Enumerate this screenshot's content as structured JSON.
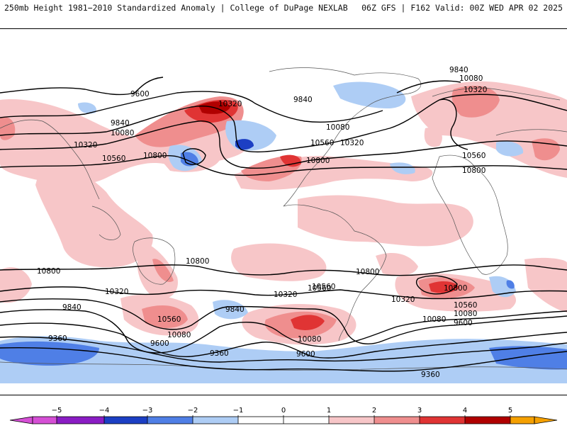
{
  "header": {
    "left": "250mb Height 1981−2010 Standardized Anomaly | College of DuPage NEXLAB",
    "right": "06Z GFS | F162 Valid: 00Z WED APR 02 2025"
  },
  "colors": {
    "neg5": "#d54fd5",
    "neg4": "#8a1cc4",
    "neg3": "#1c3fc4",
    "neg2": "#4f7fe6",
    "neg1": "#aecdf5",
    "zero": "#ffffff",
    "pos1": "#f7c6c8",
    "pos2": "#ef8e8e",
    "pos3": "#e03434",
    "pos4": "#b00000",
    "pos5": "#f5a000",
    "contour": "#000000",
    "land_outline": "#555555"
  },
  "contour_labels": [
    {
      "text": "9840"
    },
    {
      "text": "10080"
    },
    {
      "text": "10320"
    },
    {
      "text": "9600"
    },
    {
      "text": "10320"
    },
    {
      "text": "9840"
    },
    {
      "text": "10080"
    },
    {
      "text": "10320"
    },
    {
      "text": "10560"
    },
    {
      "text": "10800"
    },
    {
      "text": "10560"
    },
    {
      "text": "10800"
    },
    {
      "text": "10080"
    },
    {
      "text": "10560"
    },
    {
      "text": "10320"
    },
    {
      "text": "9840"
    },
    {
      "text": "10800"
    },
    {
      "text": "10800"
    },
    {
      "text": "10320"
    },
    {
      "text": "10800"
    },
    {
      "text": "10800"
    },
    {
      "text": "10560"
    },
    {
      "text": "10320"
    },
    {
      "text": "9840"
    },
    {
      "text": "10320"
    },
    {
      "text": "10560"
    },
    {
      "text": "10080"
    },
    {
      "text": "9600"
    },
    {
      "text": "9360"
    },
    {
      "text": "9840"
    },
    {
      "text": "10560"
    },
    {
      "text": "10080"
    },
    {
      "text": "9600"
    },
    {
      "text": "9360"
    },
    {
      "text": "10080"
    },
    {
      "text": "9600"
    },
    {
      "text": "9360"
    },
    {
      "text": "10560"
    },
    {
      "text": "10800"
    },
    {
      "text": "10080"
    }
  ],
  "colorbar": {
    "ticks": [
      "−5",
      "−4",
      "−3",
      "−2",
      "−1",
      "0",
      "1",
      "2",
      "3",
      "4",
      "5"
    ]
  }
}
